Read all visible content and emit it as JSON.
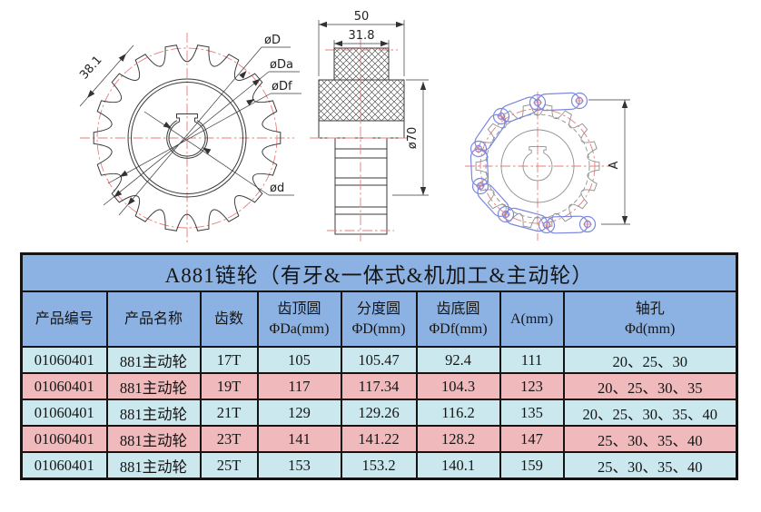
{
  "colors": {
    "header_blue": "#8CB2E4",
    "row_blue": "#CAE8EE",
    "row_pink": "#F0B9BB",
    "red": "#E87C7C",
    "chain_blue": "#7B87E0"
  },
  "drawing": {
    "labels": {
      "pitch_dia": "øD",
      "tip_dia": "øDa",
      "root_dia": "øDf",
      "bore_dia": "ød",
      "chain_pitch": "38.1",
      "overall_width": "50",
      "hub_width": "31.8",
      "hub_dia": "ø70",
      "wrap_height": "A"
    }
  },
  "table": {
    "title": "A881链轮（有牙&一体式&机加工&主动轮）",
    "headers": [
      {
        "lines": [
          "产品编号"
        ]
      },
      {
        "lines": [
          "产品名称"
        ]
      },
      {
        "lines": [
          "齿数"
        ]
      },
      {
        "lines": [
          "齿顶圆",
          "ΦDa(mm)"
        ]
      },
      {
        "lines": [
          "分度圆",
          "ΦD(mm)"
        ]
      },
      {
        "lines": [
          "齿底圆",
          "ΦDf(mm)"
        ]
      },
      {
        "lines": [
          "A(mm)"
        ]
      },
      {
        "lines": [
          "轴孔",
          "Φd(mm)"
        ]
      }
    ],
    "rows": [
      {
        "tone": "blue",
        "cells": [
          "01060401",
          "881主动轮",
          "17T",
          "105",
          "105.47",
          "92.4",
          "111",
          "20、25、30"
        ]
      },
      {
        "tone": "pink",
        "cells": [
          "01060401",
          "881主动轮",
          "19T",
          "117",
          "117.34",
          "104.3",
          "123",
          "20、25、30、35"
        ]
      },
      {
        "tone": "blue",
        "cells": [
          "01060401",
          "881主动轮",
          "21T",
          "129",
          "129.26",
          "116.2",
          "135",
          "20、25、30、35、40"
        ]
      },
      {
        "tone": "pink",
        "cells": [
          "01060401",
          "881主动轮",
          "23T",
          "141",
          "141.22",
          "128.2",
          "147",
          "25、30、35、40"
        ]
      },
      {
        "tone": "blue",
        "cells": [
          "01060401",
          "881主动轮",
          "25T",
          "153",
          "153.2",
          "140.1",
          "159",
          "25、30、35、40"
        ]
      }
    ]
  }
}
